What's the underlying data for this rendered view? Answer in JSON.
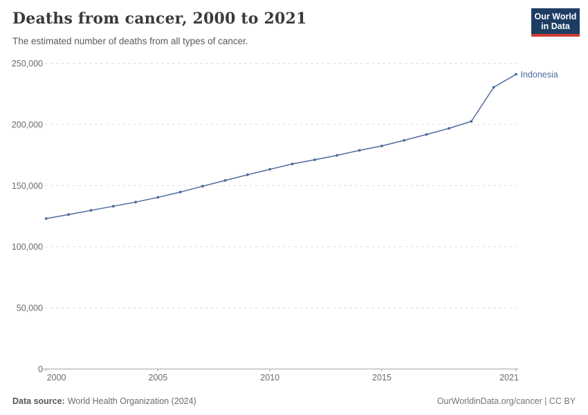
{
  "header": {
    "title": "Deaths from cancer, 2000 to 2021",
    "subtitle": "The estimated number of deaths from all types of cancer.",
    "logo": {
      "line1": "Our World",
      "line2": "in Data"
    }
  },
  "colors": {
    "line": "#4C6A9C",
    "grid": "#dddddd",
    "axis": "#a5a5a5",
    "tick_text": "#6a6a6a",
    "logo_bg": "#1d3d63",
    "logo_accent": "#cf3a32"
  },
  "chart_data": {
    "type": "line",
    "title": "Deaths from cancer, 2000 to 2021",
    "xlabel": "",
    "ylabel": "",
    "xlim": [
      2000,
      2021
    ],
    "ylim": [
      0,
      250000
    ],
    "x_ticks": [
      2000,
      2005,
      2010,
      2015,
      2021
    ],
    "y_ticks": [
      0,
      50000,
      100000,
      150000,
      200000,
      250000
    ],
    "grid": "horizontal-dashed",
    "legend_position": "end-of-line",
    "series": [
      {
        "name": "Indonesia",
        "color": "#4C6A9C",
        "x": [
          2000,
          2001,
          2002,
          2003,
          2004,
          2005,
          2006,
          2007,
          2008,
          2009,
          2010,
          2011,
          2012,
          2013,
          2014,
          2015,
          2016,
          2017,
          2018,
          2019,
          2020,
          2021
        ],
        "values": [
          123000,
          126300,
          129700,
          133100,
          136500,
          140400,
          144700,
          149500,
          154200,
          158800,
          163300,
          167700,
          171100,
          174700,
          178800,
          182400,
          187000,
          191800,
          196800,
          202500,
          230400,
          241000
        ]
      }
    ]
  },
  "footer": {
    "source_label": "Data source:",
    "source_value": "World Health Organization (2024)",
    "link": "OurWorldinData.org/cancer | CC BY"
  }
}
